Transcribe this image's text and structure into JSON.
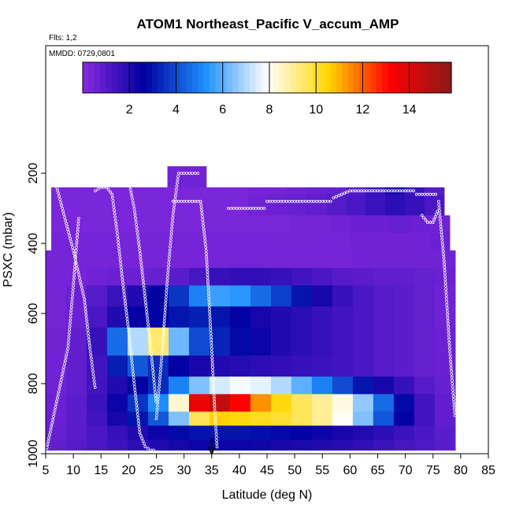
{
  "chart_data": {
    "type": "heatmap",
    "title": "ATOM1 Northeast_Pacific V_accum_AMP",
    "flights_label": "Flts: 1,2",
    "dates_label": "MMDD: 0729,0801",
    "xlabel": "Latitude (deg N)",
    "ylabel": "PSXC (mbar)",
    "xlim": [
      5,
      85
    ],
    "ylim": [
      1000,
      0
    ],
    "x_ticks": [
      5,
      10,
      15,
      20,
      25,
      30,
      35,
      40,
      45,
      50,
      55,
      60,
      65,
      70,
      75,
      80,
      85
    ],
    "y_ticks": [
      200,
      400,
      600,
      800,
      1000
    ],
    "colorbar": {
      "min": 0,
      "max": 15.8,
      "ticks": [
        2,
        4,
        6,
        8,
        10,
        12,
        14
      ],
      "colors": [
        "#8a2be2",
        "#0000a0",
        "#1e90ff",
        "#ffffff",
        "#ffd700",
        "#ff0000",
        "#8b1a1a"
      ]
    },
    "marker": {
      "latitude": 35,
      "pressure": 1000,
      "symbol": "arrow"
    },
    "layers": [
      {
        "p_top": 180,
        "p_bot": 240,
        "lat_start": 27,
        "lat_end": 34,
        "values": [
          0.5
        ]
      },
      {
        "p_top": 240,
        "p_bot": 260,
        "lat_start": 6,
        "lat_end": 77,
        "values": [
          0.3,
          0.3,
          0.3,
          0.3,
          0.3,
          0.3,
          0.3,
          0.3,
          0.3,
          0.3,
          0.4,
          0.4,
          0.5,
          0.6,
          0.7,
          1.0,
          1.5,
          2.2,
          1.5,
          1.0
        ]
      },
      {
        "p_top": 260,
        "p_bot": 320,
        "lat_start": 6,
        "lat_end": 77,
        "values": [
          0.3,
          0.3,
          0.3,
          0.3,
          0.3,
          0.3,
          0.3,
          0.3,
          0.3,
          0.3,
          0.5,
          0.6,
          0.7,
          0.8,
          1.0,
          1.2,
          1.5,
          1.8,
          1.6,
          1.2
        ]
      },
      {
        "p_top": 320,
        "p_bot": 370,
        "lat_start": 6,
        "lat_end": 78,
        "values": [
          0.3,
          0.3,
          0.3,
          0.3,
          0.3,
          0.3,
          0.3,
          0.3,
          0.3,
          0.3,
          0.3,
          0.3,
          0.4,
          0.4,
          0.5,
          0.6,
          0.6,
          0.7,
          0.6,
          0.5
        ]
      },
      {
        "p_top": 370,
        "p_bot": 420,
        "lat_start": 6,
        "lat_end": 78,
        "values": [
          0.4,
          0.4,
          0.4,
          0.4,
          0.4,
          0.4,
          0.4,
          0.4,
          0.4,
          0.4,
          0.4,
          0.4,
          0.4,
          0.4,
          0.4,
          0.5,
          0.5,
          0.5,
          0.5,
          0.6
        ]
      },
      {
        "p_top": 420,
        "p_bot": 470,
        "lat_start": 5,
        "lat_end": 79,
        "values": [
          0.4,
          0.4,
          0.4,
          0.4,
          0.4,
          0.4,
          0.4,
          0.4,
          0.4,
          0.4,
          0.4,
          0.4,
          0.4,
          0.4,
          0.4,
          0.5,
          0.5,
          0.5,
          0.5,
          0.5
        ]
      },
      {
        "p_top": 470,
        "p_bot": 520,
        "lat_start": 5,
        "lat_end": 79,
        "values": [
          0.4,
          0.4,
          0.5,
          0.6,
          0.6,
          0.7,
          0.9,
          1.3,
          1.6,
          1.7,
          1.7,
          1.6,
          1.4,
          1.2,
          1.0,
          0.9,
          0.8,
          0.8,
          0.7,
          0.6
        ]
      },
      {
        "p_top": 520,
        "p_bot": 580,
        "lat_start": 5,
        "lat_end": 79,
        "values": [
          0.4,
          0.6,
          1.0,
          1.5,
          2.0,
          2.6,
          3.6,
          5.0,
          5.6,
          5.4,
          4.6,
          3.8,
          3.0,
          2.2,
          1.6,
          1.2,
          1.0,
          0.9,
          0.7,
          0.5
        ]
      },
      {
        "p_top": 580,
        "p_bot": 640,
        "lat_start": 5,
        "lat_end": 79,
        "values": [
          0.4,
          0.6,
          1.2,
          2.0,
          2.5,
          2.7,
          3.0,
          3.2,
          3.0,
          2.6,
          2.2,
          2.0,
          1.8,
          1.6,
          1.4,
          1.2,
          1.0,
          0.9,
          0.7,
          0.5
        ]
      },
      {
        "p_top": 640,
        "p_bot": 720,
        "lat_start": 5,
        "lat_end": 79,
        "values": [
          0.5,
          0.8,
          1.6,
          4.6,
          7.0,
          9.4,
          6.2,
          4.0,
          3.3,
          2.8,
          2.4,
          2.0,
          1.8,
          1.6,
          1.4,
          1.2,
          1.0,
          0.9,
          0.7,
          0.6
        ]
      },
      {
        "p_top": 720,
        "p_bot": 780,
        "lat_start": 5,
        "lat_end": 79,
        "values": [
          0.5,
          0.8,
          1.4,
          3.2,
          4.2,
          3.4,
          2.6,
          2.2,
          2.0,
          1.9,
          1.8,
          1.7,
          1.6,
          1.5,
          1.4,
          1.2,
          1.0,
          0.9,
          0.7,
          0.6
        ]
      },
      {
        "p_top": 780,
        "p_bot": 830,
        "lat_start": 5,
        "lat_end": 79,
        "values": [
          0.5,
          0.8,
          1.4,
          2.0,
          2.6,
          3.4,
          5.0,
          6.4,
          7.4,
          7.8,
          7.6,
          7.0,
          6.0,
          5.0,
          4.0,
          3.0,
          2.2,
          1.6,
          1.0,
          0.7
        ]
      },
      {
        "p_top": 830,
        "p_bot": 880,
        "lat_start": 5,
        "lat_end": 79,
        "values": [
          0.6,
          0.9,
          1.5,
          2.4,
          3.6,
          5.2,
          8.4,
          13.6,
          14.6,
          13.2,
          11.4,
          10.4,
          9.6,
          9.0,
          8.2,
          6.6,
          4.6,
          2.8,
          1.4,
          0.8
        ]
      },
      {
        "p_top": 880,
        "p_bot": 920,
        "lat_start": 5,
        "lat_end": 79,
        "values": [
          0.6,
          0.9,
          1.4,
          2.2,
          3.0,
          4.2,
          6.4,
          9.6,
          10.6,
          10.4,
          10.2,
          10.0,
          9.6,
          9.0,
          8.0,
          6.4,
          4.2,
          2.6,
          1.4,
          0.8
        ]
      },
      {
        "p_top": 920,
        "p_bot": 960,
        "lat_start": 5,
        "lat_end": 79,
        "values": [
          0.7,
          0.9,
          1.2,
          1.6,
          2.0,
          2.4,
          2.8,
          3.0,
          3.0,
          3.0,
          2.9,
          2.8,
          2.6,
          2.4,
          2.2,
          2.0,
          1.8,
          1.5,
          1.2,
          0.9
        ]
      },
      {
        "p_top": 960,
        "p_bot": 990,
        "lat_start": 5,
        "lat_end": 79,
        "values": [
          0.8,
          1.0,
          1.2,
          1.5,
          1.8,
          2.0,
          2.2,
          2.4,
          2.4,
          2.4,
          2.3,
          2.2,
          2.1,
          2.0,
          1.9,
          1.7,
          1.5,
          1.3,
          1.1,
          0.9
        ]
      }
    ],
    "flight_track_segments": [
      {
        "lat": [
          5,
          7,
          9,
          10,
          11
        ],
        "p": [
          1000,
          850,
          700,
          520,
          320
        ]
      },
      {
        "lat": [
          7,
          8,
          10,
          12,
          13,
          14
        ],
        "p": [
          240,
          300,
          420,
          560,
          700,
          820
        ]
      },
      {
        "lat": [
          14,
          15,
          16,
          17
        ],
        "p": [
          250,
          240,
          240,
          260
        ]
      },
      {
        "lat": [
          17,
          18,
          19,
          20,
          21,
          22,
          23,
          24,
          25
        ],
        "p": [
          260,
          380,
          520,
          650,
          800,
          940,
          980,
          990,
          990
        ]
      },
      {
        "lat": [
          19,
          20,
          21,
          22,
          23,
          24,
          25
        ],
        "p": [
          220,
          220,
          300,
          420,
          560,
          700,
          860
        ]
      },
      {
        "lat": [
          25,
          26,
          27,
          28,
          29,
          31,
          33
        ],
        "p": [
          900,
          720,
          500,
          320,
          200,
          200,
          200
        ]
      },
      {
        "lat": [
          28,
          29,
          30,
          31,
          32,
          33
        ],
        "p": [
          280,
          280,
          280,
          280,
          280,
          280
        ]
      },
      {
        "lat": [
          33,
          34,
          34.5,
          35,
          35.5,
          36
        ],
        "p": [
          280,
          420,
          560,
          700,
          860,
          990
        ]
      },
      {
        "lat": [
          38,
          40,
          42,
          44,
          45
        ],
        "p": [
          300,
          300,
          300,
          300,
          300
        ]
      },
      {
        "lat": [
          45,
          47,
          49,
          51,
          53,
          55,
          57
        ],
        "p": [
          280,
          280,
          280,
          280,
          280,
          280,
          280
        ]
      },
      {
        "lat": [
          57,
          60,
          62,
          64,
          66,
          68,
          70,
          72
        ],
        "p": [
          270,
          250,
          250,
          250,
          250,
          250,
          250,
          250
        ]
      },
      {
        "lat": [
          72,
          74,
          76
        ],
        "p": [
          260,
          260,
          260
        ]
      },
      {
        "lat": [
          76,
          77,
          78,
          79
        ],
        "p": [
          280,
          450,
          700,
          900
        ]
      },
      {
        "lat": [
          73,
          74,
          75,
          76
        ],
        "p": [
          320,
          340,
          340,
          300
        ]
      }
    ]
  }
}
